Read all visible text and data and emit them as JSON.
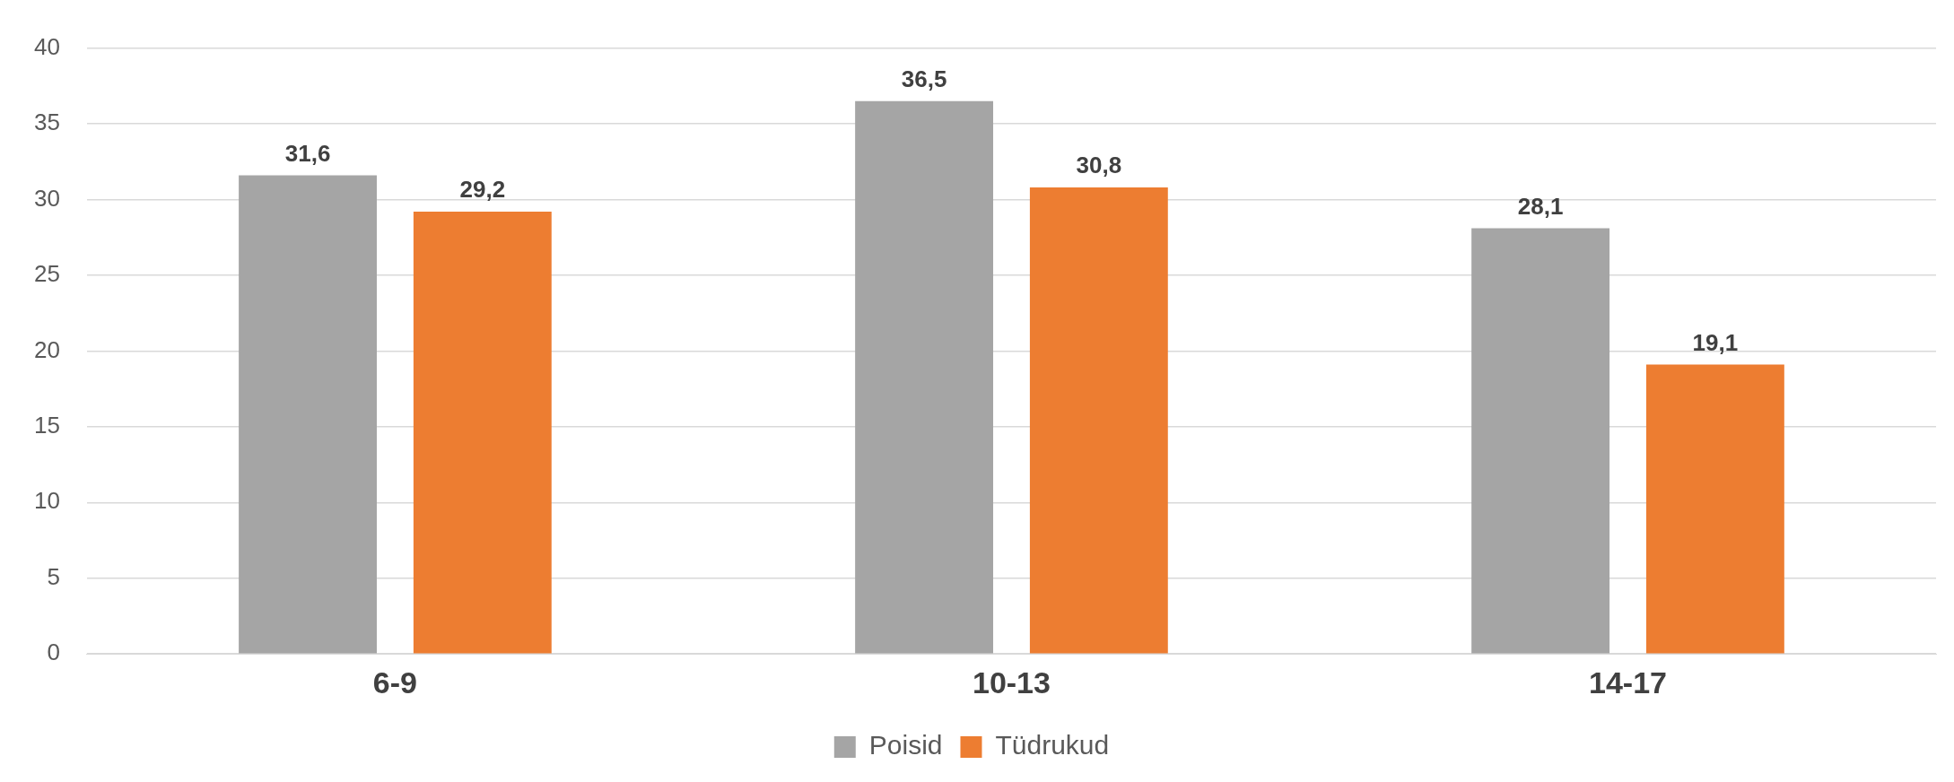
{
  "chart_data": {
    "type": "bar",
    "categories": [
      "6-9",
      "10-13",
      "14-17"
    ],
    "series": [
      {
        "name": "Poisid",
        "color": "#a5a5a5",
        "values": [
          31.6,
          36.5,
          28.1
        ],
        "value_labels": [
          "31,6",
          "36,5",
          "28,1"
        ]
      },
      {
        "name": "Tüdrukud",
        "color": "#ed7d31",
        "values": [
          29.2,
          30.8,
          19.1
        ],
        "value_labels": [
          "29,2",
          "30,8",
          "19,1"
        ]
      }
    ],
    "ylim": [
      0,
      40
    ],
    "yticks": [
      0,
      5,
      10,
      15,
      20,
      25,
      30,
      35,
      40
    ],
    "grid": "y",
    "legend": "bottom"
  }
}
